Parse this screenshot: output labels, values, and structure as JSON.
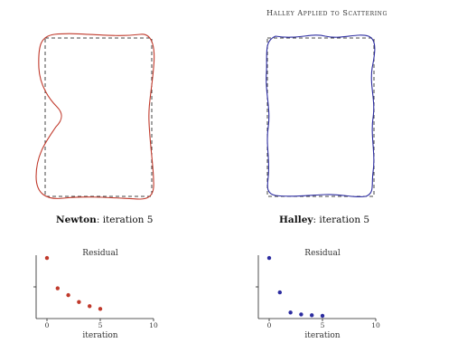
{
  "page_title": "Halley Applied to Scattering",
  "panels": [
    {
      "method": "Newton",
      "caption_method": "Newton",
      "caption_suffix": ": iteration 5",
      "color": "#c0392b",
      "shape": "Newton curve: tall rounded shape with a deep notch on the left side"
    },
    {
      "method": "Halley",
      "caption_method": "Halley",
      "caption_suffix": ": iteration 5",
      "color": "#2c2ca0",
      "shape": "Halley curve: rounded rectangle with wavy edges closely following the dashed box"
    }
  ],
  "reference_box_style": "dashed",
  "chart_data": [
    {
      "type": "scatter",
      "title": "Residual",
      "xlabel": "iteration",
      "ylabel": "",
      "x": [
        0,
        1,
        2,
        3,
        4,
        5
      ],
      "y": [
        2.1,
        1.0,
        0.75,
        0.5,
        0.35,
        0.25
      ],
      "xlim": [
        -1,
        10
      ],
      "ylim": [
        -0.1,
        2.2
      ],
      "xticks": [
        "0",
        "5",
        "10"
      ],
      "color": "#c0392b"
    },
    {
      "type": "scatter",
      "title": "Residual",
      "xlabel": "iteration",
      "ylabel": "",
      "x": [
        0,
        1,
        2,
        3,
        4,
        5
      ],
      "y": [
        2.1,
        0.85,
        0.12,
        0.05,
        0.02,
        0.0
      ],
      "xlim": [
        -1,
        10
      ],
      "ylim": [
        -0.1,
        2.2
      ],
      "xticks": [
        "0",
        "5",
        "10"
      ],
      "color": "#2c2ca0"
    }
  ]
}
